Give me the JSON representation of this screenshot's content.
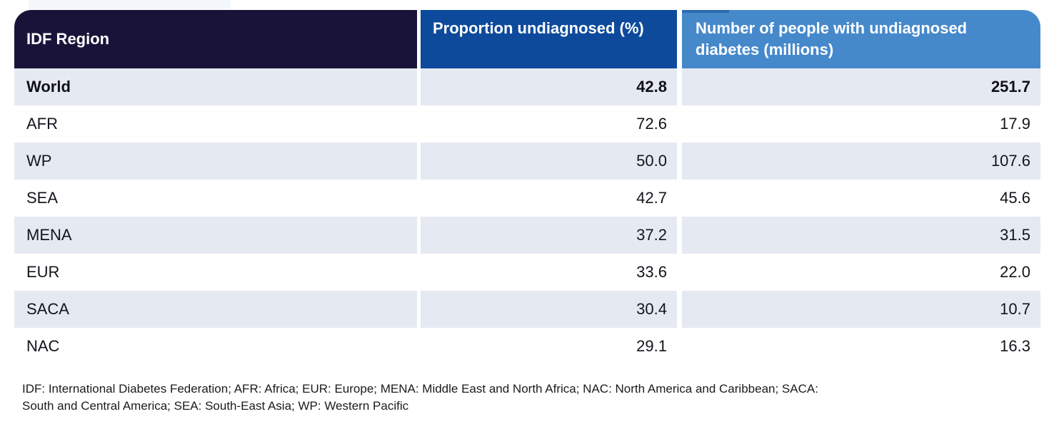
{
  "colors": {
    "header_region_bg": "#1a1339",
    "header_proportion_bg": "#0d4a9c",
    "header_number_bg": "#4689cb",
    "header_accent": "#2e6bb0",
    "row_alt_bg": "#e5eaf2",
    "header_text": "#ffffff",
    "body_text": "#14141c"
  },
  "table": {
    "columns": [
      {
        "label": "IDF Region"
      },
      {
        "label": "Proportion undiagnosed (%)"
      },
      {
        "label": "Number of people with undiagnosed diabetes (millions)"
      }
    ],
    "rows": [
      {
        "region": "World",
        "proportion": "42.8",
        "number": "251.7"
      },
      {
        "region": "AFR",
        "proportion": "72.6",
        "number": "17.9"
      },
      {
        "region": "WP",
        "proportion": "50.0",
        "number": "107.6"
      },
      {
        "region": "SEA",
        "proportion": "42.7",
        "number": "45.6"
      },
      {
        "region": "MENA",
        "proportion": "37.2",
        "number": "31.5"
      },
      {
        "region": "EUR",
        "proportion": "33.6",
        "number": "22.0"
      },
      {
        "region": "SACA",
        "proportion": "30.4",
        "number": "10.7"
      },
      {
        "region": "NAC",
        "proportion": "29.1",
        "number": "16.3"
      }
    ]
  },
  "footnote": {
    "line1": "IDF: International Diabetes Federation; AFR: Africa; EUR: Europe; MENA: Middle East and North Africa; NAC: North America and Caribbean; SACA:",
    "line2": "South and Central America; SEA: South-East Asia; WP: Western Pacific"
  },
  "chart_data": {
    "type": "table",
    "title": "Proportion and number of people with undiagnosed diabetes by IDF Region",
    "columns": [
      "IDF Region",
      "Proportion undiagnosed (%)",
      "Number of people with undiagnosed diabetes (millions)"
    ],
    "rows": [
      [
        "World",
        42.8,
        251.7
      ],
      [
        "AFR",
        72.6,
        17.9
      ],
      [
        "WP",
        50.0,
        107.6
      ],
      [
        "SEA",
        42.7,
        45.6
      ],
      [
        "MENA",
        37.2,
        31.5
      ],
      [
        "EUR",
        33.6,
        22.0
      ],
      [
        "SACA",
        30.4,
        10.7
      ],
      [
        "NAC",
        29.1,
        16.3
      ]
    ],
    "footnote": "IDF: International Diabetes Federation; AFR: Africa; EUR: Europe; MENA: Middle East and North Africa; NAC: North America and Caribbean; SACA: South and Central America; SEA: South-East Asia; WP: Western Pacific"
  }
}
